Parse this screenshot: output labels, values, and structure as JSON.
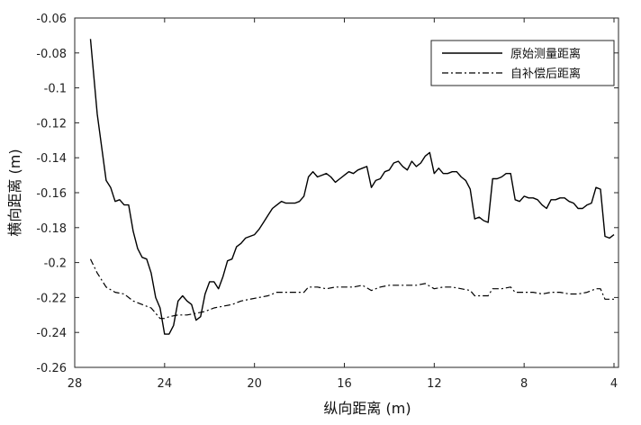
{
  "chart_data": {
    "type": "line",
    "xlabel": "纵向距离 (m)",
    "ylabel": "横向距离 (m)",
    "xlim": [
      28,
      3.8
    ],
    "x_reversed": true,
    "ylim": [
      -0.26,
      -0.06
    ],
    "xticks": [
      28,
      24,
      20,
      16,
      12,
      8,
      4
    ],
    "yticks": [
      -0.06,
      -0.08,
      -0.1,
      -0.12,
      -0.14,
      -0.16,
      -0.18,
      -0.2,
      -0.22,
      -0.24,
      -0.26
    ],
    "xtick_labels": [
      "28",
      "24",
      "20",
      "16",
      "12",
      "8",
      "4"
    ],
    "ytick_labels": [
      "-0.06",
      "-0.08",
      "-0.1",
      "-0.12",
      "-0.14",
      "-0.16",
      "-0.18",
      "-0.2",
      "-0.22",
      "-0.24",
      "-0.26"
    ],
    "grid": false,
    "legend_position": "top-right",
    "series": [
      {
        "name": "原始测量距离",
        "style": "solid",
        "color": "#000000",
        "points": [
          [
            27.3,
            -0.072
          ],
          [
            27.0,
            -0.115
          ],
          [
            26.6,
            -0.153
          ],
          [
            26.4,
            -0.157
          ],
          [
            26.2,
            -0.165
          ],
          [
            26.0,
            -0.164
          ],
          [
            25.8,
            -0.167
          ],
          [
            25.6,
            -0.167
          ],
          [
            25.4,
            -0.182
          ],
          [
            25.2,
            -0.192
          ],
          [
            25.0,
            -0.197
          ],
          [
            24.8,
            -0.198
          ],
          [
            24.6,
            -0.206
          ],
          [
            24.4,
            -0.22
          ],
          [
            24.2,
            -0.226
          ],
          [
            24.0,
            -0.241
          ],
          [
            23.8,
            -0.241
          ],
          [
            23.6,
            -0.236
          ],
          [
            23.4,
            -0.222
          ],
          [
            23.2,
            -0.219
          ],
          [
            23.0,
            -0.222
          ],
          [
            22.8,
            -0.224
          ],
          [
            22.6,
            -0.233
          ],
          [
            22.4,
            -0.231
          ],
          [
            22.2,
            -0.218
          ],
          [
            22.0,
            -0.211
          ],
          [
            21.8,
            -0.211
          ],
          [
            21.6,
            -0.215
          ],
          [
            21.4,
            -0.208
          ],
          [
            21.2,
            -0.199
          ],
          [
            21.0,
            -0.198
          ],
          [
            20.8,
            -0.191
          ],
          [
            20.6,
            -0.189
          ],
          [
            20.4,
            -0.186
          ],
          [
            20.2,
            -0.185
          ],
          [
            20.0,
            -0.184
          ],
          [
            19.8,
            -0.181
          ],
          [
            19.6,
            -0.177
          ],
          [
            19.4,
            -0.173
          ],
          [
            19.2,
            -0.169
          ],
          [
            19.0,
            -0.167
          ],
          [
            18.8,
            -0.165
          ],
          [
            18.6,
            -0.166
          ],
          [
            18.4,
            -0.166
          ],
          [
            18.2,
            -0.166
          ],
          [
            18.0,
            -0.165
          ],
          [
            17.8,
            -0.162
          ],
          [
            17.6,
            -0.151
          ],
          [
            17.4,
            -0.148
          ],
          [
            17.2,
            -0.151
          ],
          [
            17.0,
            -0.15
          ],
          [
            16.8,
            -0.149
          ],
          [
            16.6,
            -0.151
          ],
          [
            16.4,
            -0.154
          ],
          [
            16.2,
            -0.152
          ],
          [
            16.0,
            -0.15
          ],
          [
            15.8,
            -0.148
          ],
          [
            15.6,
            -0.149
          ],
          [
            15.4,
            -0.147
          ],
          [
            15.2,
            -0.146
          ],
          [
            15.0,
            -0.145
          ],
          [
            14.8,
            -0.157
          ],
          [
            14.6,
            -0.153
          ],
          [
            14.4,
            -0.152
          ],
          [
            14.2,
            -0.148
          ],
          [
            14.0,
            -0.147
          ],
          [
            13.8,
            -0.143
          ],
          [
            13.6,
            -0.142
          ],
          [
            13.4,
            -0.145
          ],
          [
            13.2,
            -0.147
          ],
          [
            13.0,
            -0.142
          ],
          [
            12.8,
            -0.145
          ],
          [
            12.6,
            -0.143
          ],
          [
            12.4,
            -0.139
          ],
          [
            12.2,
            -0.137
          ],
          [
            12.0,
            -0.149
          ],
          [
            11.8,
            -0.146
          ],
          [
            11.6,
            -0.149
          ],
          [
            11.4,
            -0.149
          ],
          [
            11.2,
            -0.148
          ],
          [
            11.0,
            -0.148
          ],
          [
            10.8,
            -0.151
          ],
          [
            10.6,
            -0.153
          ],
          [
            10.4,
            -0.158
          ],
          [
            10.2,
            -0.175
          ],
          [
            10.0,
            -0.174
          ],
          [
            9.8,
            -0.176
          ],
          [
            9.6,
            -0.177
          ],
          [
            9.4,
            -0.152
          ],
          [
            9.2,
            -0.152
          ],
          [
            9.0,
            -0.151
          ],
          [
            8.8,
            -0.149
          ],
          [
            8.6,
            -0.149
          ],
          [
            8.4,
            -0.164
          ],
          [
            8.2,
            -0.165
          ],
          [
            8.0,
            -0.162
          ],
          [
            7.8,
            -0.163
          ],
          [
            7.6,
            -0.163
          ],
          [
            7.4,
            -0.164
          ],
          [
            7.2,
            -0.167
          ],
          [
            7.0,
            -0.169
          ],
          [
            6.8,
            -0.164
          ],
          [
            6.6,
            -0.164
          ],
          [
            6.4,
            -0.163
          ],
          [
            6.2,
            -0.163
          ],
          [
            6.0,
            -0.165
          ],
          [
            5.8,
            -0.166
          ],
          [
            5.6,
            -0.169
          ],
          [
            5.4,
            -0.169
          ],
          [
            5.2,
            -0.167
          ],
          [
            5.0,
            -0.166
          ],
          [
            4.8,
            -0.157
          ],
          [
            4.6,
            -0.158
          ],
          [
            4.4,
            -0.185
          ],
          [
            4.2,
            -0.186
          ],
          [
            4.0,
            -0.184
          ]
        ]
      },
      {
        "name": "自补偿后距离",
        "style": "dashdot",
        "color": "#000000",
        "points": [
          [
            27.3,
            -0.198
          ],
          [
            27.0,
            -0.206
          ],
          [
            26.6,
            -0.214
          ],
          [
            26.2,
            -0.217
          ],
          [
            25.8,
            -0.218
          ],
          [
            25.4,
            -0.222
          ],
          [
            25.0,
            -0.224
          ],
          [
            24.6,
            -0.226
          ],
          [
            24.4,
            -0.229
          ],
          [
            24.2,
            -0.232
          ],
          [
            24.0,
            -0.232
          ],
          [
            23.8,
            -0.231
          ],
          [
            23.4,
            -0.23
          ],
          [
            23.0,
            -0.23
          ],
          [
            22.6,
            -0.229
          ],
          [
            22.2,
            -0.228
          ],
          [
            21.8,
            -0.226
          ],
          [
            21.4,
            -0.225
          ],
          [
            21.0,
            -0.224
          ],
          [
            20.6,
            -0.222
          ],
          [
            20.2,
            -0.221
          ],
          [
            19.8,
            -0.22
          ],
          [
            19.4,
            -0.219
          ],
          [
            19.0,
            -0.217
          ],
          [
            18.6,
            -0.217
          ],
          [
            18.2,
            -0.217
          ],
          [
            17.8,
            -0.217
          ],
          [
            17.6,
            -0.214
          ],
          [
            17.2,
            -0.214
          ],
          [
            16.8,
            -0.215
          ],
          [
            16.4,
            -0.214
          ],
          [
            16.0,
            -0.214
          ],
          [
            15.6,
            -0.214
          ],
          [
            15.2,
            -0.213
          ],
          [
            14.8,
            -0.216
          ],
          [
            14.4,
            -0.214
          ],
          [
            14.0,
            -0.213
          ],
          [
            13.6,
            -0.213
          ],
          [
            13.2,
            -0.213
          ],
          [
            12.8,
            -0.213
          ],
          [
            12.4,
            -0.212
          ],
          [
            12.0,
            -0.215
          ],
          [
            11.6,
            -0.214
          ],
          [
            11.2,
            -0.214
          ],
          [
            10.8,
            -0.215
          ],
          [
            10.4,
            -0.216
          ],
          [
            10.2,
            -0.219
          ],
          [
            9.8,
            -0.219
          ],
          [
            9.6,
            -0.219
          ],
          [
            9.4,
            -0.215
          ],
          [
            9.0,
            -0.215
          ],
          [
            8.6,
            -0.214
          ],
          [
            8.4,
            -0.217
          ],
          [
            8.0,
            -0.217
          ],
          [
            7.6,
            -0.217
          ],
          [
            7.2,
            -0.218
          ],
          [
            6.8,
            -0.217
          ],
          [
            6.4,
            -0.217
          ],
          [
            6.0,
            -0.218
          ],
          [
            5.6,
            -0.218
          ],
          [
            5.2,
            -0.217
          ],
          [
            4.8,
            -0.215
          ],
          [
            4.6,
            -0.215
          ],
          [
            4.4,
            -0.221
          ],
          [
            4.0,
            -0.221
          ]
        ]
      }
    ]
  }
}
